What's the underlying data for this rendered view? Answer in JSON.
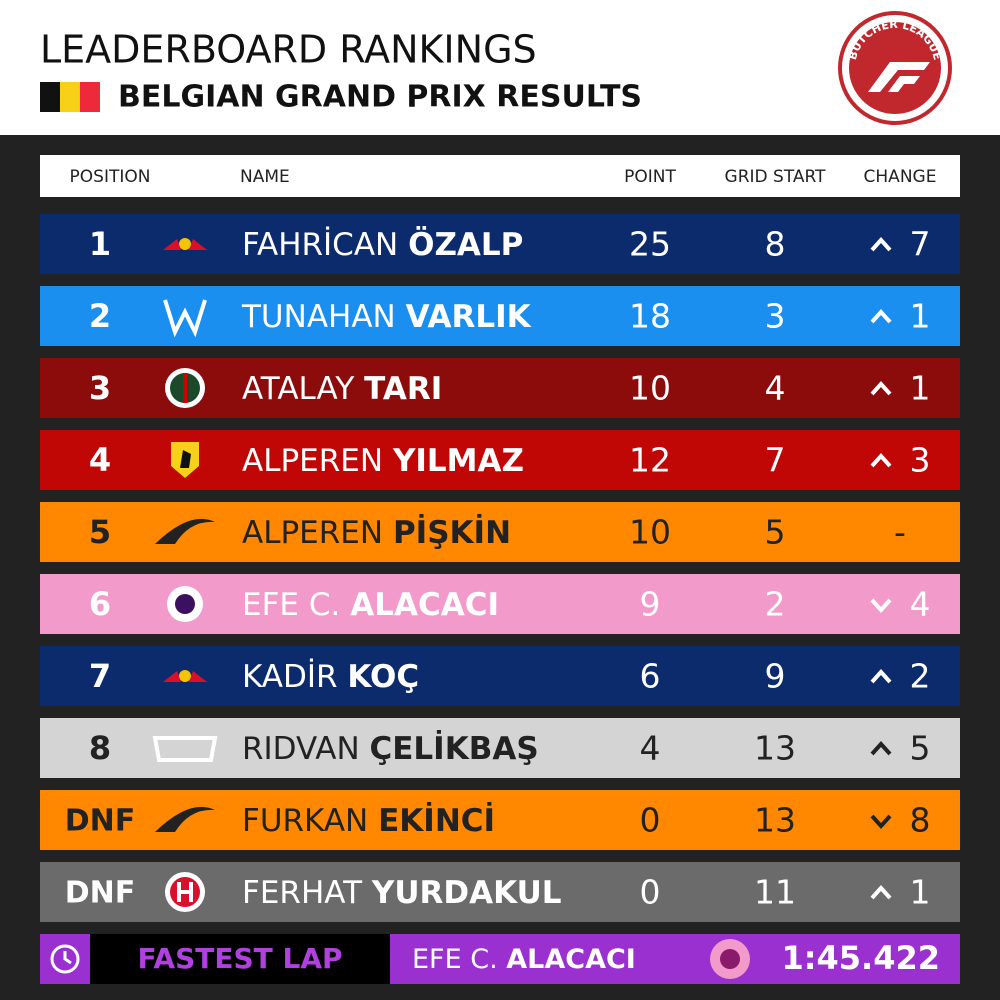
{
  "header": {
    "title": "LEADERBOARD RANKINGS",
    "subtitle": "BELGIAN GRAND PRIX RESULTS",
    "logo_text": "BUTCHER LEAGUE"
  },
  "table": {
    "columns": [
      "POSITION",
      "NAME",
      "POINT",
      "GRID START",
      "CHANGE"
    ],
    "rows": [
      {
        "position": "1",
        "logo": "redbull",
        "first": "FAHRİCAN",
        "last": "ÖZALP",
        "point": "25",
        "grid": "8",
        "change": "7",
        "dir": "up",
        "color": "#0c2b6c",
        "text": "#ffffff"
      },
      {
        "position": "2",
        "logo": "williams",
        "first": "TUNAHAN",
        "last": "VARLIK",
        "point": "18",
        "grid": "3",
        "change": "1",
        "dir": "up",
        "color": "#1a8ff0",
        "text": "#ffffff"
      },
      {
        "position": "3",
        "logo": "alfa",
        "first": "ATALAY",
        "last": "TARI",
        "point": "10",
        "grid": "4",
        "change": "1",
        "dir": "up",
        "color": "#8c0b0b",
        "text": "#ffffff"
      },
      {
        "position": "4",
        "logo": "ferrari",
        "first": "ALPEREN",
        "last": "YILMAZ",
        "point": "12",
        "grid": "7",
        "change": "3",
        "dir": "up",
        "color": "#c10606",
        "text": "#ffffff"
      },
      {
        "position": "5",
        "logo": "mclaren",
        "first": "ALPEREN",
        "last": "PİŞKİN",
        "point": "10",
        "grid": "5",
        "change": "-",
        "dir": "none",
        "color": "#ff8800",
        "text": "#222222"
      },
      {
        "position": "6",
        "logo": "roundel",
        "first": "EFE C.",
        "last": "ALACACI",
        "point": "9",
        "grid": "2",
        "change": "4",
        "dir": "down",
        "color": "#f29bcb",
        "text": "#ffffff"
      },
      {
        "position": "7",
        "logo": "redbull",
        "first": "KADİR",
        "last": "KOÇ",
        "point": "6",
        "grid": "9",
        "change": "2",
        "dir": "up",
        "color": "#0c2b6c",
        "text": "#ffffff"
      },
      {
        "position": "8",
        "logo": "alphatauri",
        "first": "RIDVAN",
        "last": "ÇELİKBAŞ",
        "point": "4",
        "grid": "13",
        "change": "5",
        "dir": "up",
        "color": "#d4d4d4",
        "text": "#222222"
      },
      {
        "position": "DNF",
        "logo": "mclaren",
        "first": "FURKAN",
        "last": "EKİNCİ",
        "point": "0",
        "grid": "13",
        "change": "8",
        "dir": "down",
        "color": "#ff8800",
        "text": "#222222"
      },
      {
        "position": "DNF",
        "logo": "haas",
        "first": "FERHAT",
        "last": "YURDAKUL",
        "point": "0",
        "grid": "11",
        "change": "1",
        "dir": "up",
        "color": "#6b6b6b",
        "text": "#ffffff"
      }
    ]
  },
  "fastest_lap": {
    "label": "FASTEST LAP",
    "first": "EFE C.",
    "last": "ALACACI",
    "time": "1:45.422"
  }
}
